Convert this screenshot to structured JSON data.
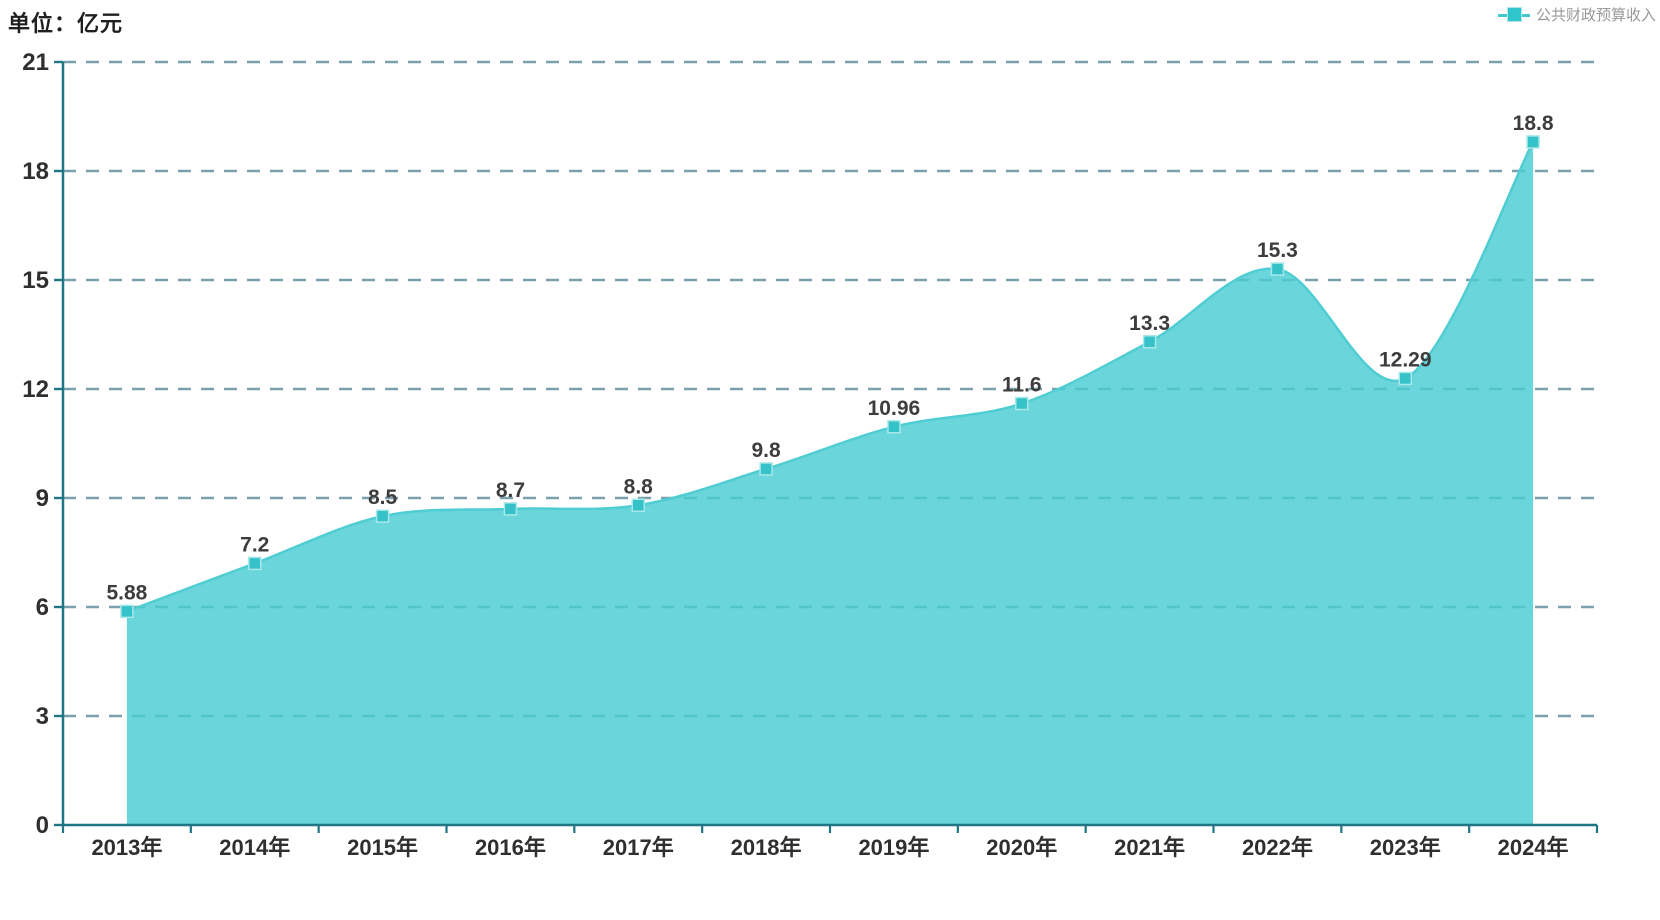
{
  "header": {
    "unit_label": "单位：亿元"
  },
  "legend": {
    "label": "公共财政预算收入"
  },
  "colors": {
    "series_fill": "#49ccd2",
    "series_fill_opacity": 0.82,
    "series_line": "#4fcdd3",
    "marker": "#35c3c9",
    "marker_border": "#a9e8ea",
    "grid": "#7ba0ad",
    "axis": "#1f7685",
    "point_label": "#3d3d3d",
    "axis_label": "#2f2f2f",
    "legend_text": "#999999"
  },
  "chart_data": {
    "type": "area",
    "title": "单位：亿元",
    "smooth": true,
    "legend_position": "top-right",
    "grid": "horizontal dashed",
    "categories": [
      "2013年",
      "2014年",
      "2015年",
      "2016年",
      "2017年",
      "2018年",
      "2019年",
      "2020年",
      "2021年",
      "2022年",
      "2023年",
      "2024年"
    ],
    "series": [
      {
        "name": "公共财政预算收入",
        "values": [
          5.88,
          7.2,
          8.5,
          8.7,
          8.8,
          9.8,
          10.96,
          11.6,
          13.3,
          15.3,
          12.29,
          18.8
        ],
        "value_labels": [
          "5.88",
          "7.2",
          "8.5",
          "8.7",
          "8.8",
          "9.8",
          "10.96",
          "11.6",
          "13.3",
          "15.3",
          "12.29",
          "18.8"
        ]
      }
    ],
    "xlabel": "",
    "ylabel": "亿元",
    "ylim": [
      0,
      21
    ],
    "yticks": [
      0,
      3,
      6,
      9,
      12,
      15,
      18,
      21
    ]
  }
}
